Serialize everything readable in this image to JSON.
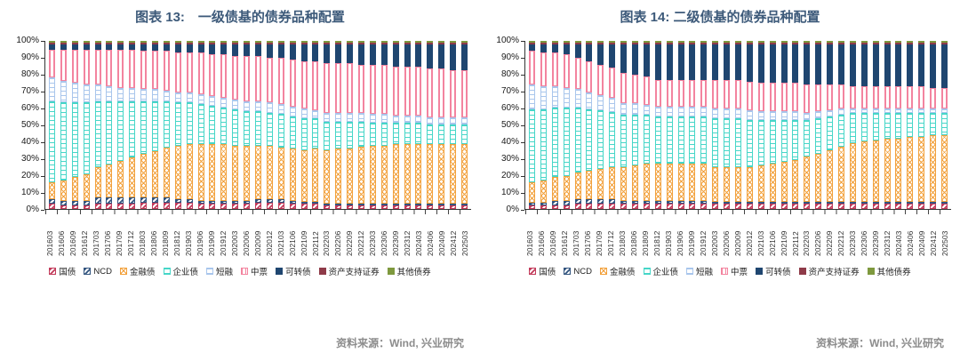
{
  "series_styles": [
    {
      "name": "国债",
      "color": "#C23A5A",
      "pattern": "diag"
    },
    {
      "name": "NCD",
      "color": "#33557F",
      "pattern": "diag"
    },
    {
      "name": "金融债",
      "color": "#F2A13C",
      "pattern": "lattice"
    },
    {
      "name": "企业债",
      "color": "#46D6C8",
      "pattern": "rungs"
    },
    {
      "name": "短融",
      "color": "#A9C6EC",
      "pattern": "rungs"
    },
    {
      "name": "中票",
      "color": "#F3849F",
      "pattern": "stripes-v"
    },
    {
      "name": "可转债",
      "color": "#1F4670",
      "pattern": "solid"
    },
    {
      "name": "资产支持证券",
      "color": "#8E3A48",
      "pattern": "solid"
    },
    {
      "name": "其他债券",
      "color": "#7E993E",
      "pattern": "solid"
    }
  ],
  "title_color": "#3D5A7A",
  "charts": [
    {
      "title": "图表 13:　一级债基的债券品种配置",
      "source": "资料来源：Wind, 兴业研究",
      "chart_data": {
        "type": "bar",
        "subtype": "stacked-100pct",
        "title": "图表 13: 一级债基的债券品种配置",
        "xlabel": "",
        "ylabel": "",
        "ylim": [
          0,
          100
        ],
        "yticks": [
          "0%",
          "10%",
          "20%",
          "30%",
          "40%",
          "50%",
          "60%",
          "70%",
          "80%",
          "90%",
          "100%"
        ],
        "grid": false,
        "legend_position": "bottom",
        "categories": [
          "201603",
          "201606",
          "201609",
          "201612",
          "201703",
          "201706",
          "201709",
          "201712",
          "201803",
          "201806",
          "201809",
          "201812",
          "201903",
          "201906",
          "201909",
          "201912",
          "202003",
          "202006",
          "202009",
          "202012",
          "202103",
          "202106",
          "202109",
          "202112",
          "202203",
          "202206",
          "202209",
          "202212",
          "202303",
          "202306",
          "202309",
          "202312",
          "202403",
          "202406",
          "202409",
          "202412",
          "202503"
        ],
        "series": [
          {
            "name": "国债",
            "values": [
              3,
              2,
              2,
              2,
              3,
              3,
              3,
              3,
              4,
              4,
              4,
              4,
              4,
              3,
              3,
              3,
              3,
              3,
              4,
              4,
              4,
              3,
              3,
              3,
              2,
              2,
              2,
              2,
              2,
              2,
              2,
              2,
              2,
              2,
              2,
              2,
              2
            ]
          },
          {
            "name": "NCD",
            "values": [
              3,
              3,
              3,
              3,
              4,
              4,
              4,
              4,
              3,
              3,
              3,
              2,
              2,
              2,
              2,
              2,
              2,
              2,
              2,
              2,
              2,
              2,
              1,
              1,
              1,
              1,
              1,
              1,
              1,
              1,
              1,
              1,
              1,
              1,
              1,
              1,
              1
            ]
          },
          {
            "name": "金融债",
            "values": [
              10,
              12,
              14,
              16,
              18,
              20,
              22,
              24,
              26,
              28,
              30,
              32,
              33,
              34,
              34,
              34,
              33,
              33,
              32,
              32,
              31,
              31,
              31,
              32,
              32,
              33,
              33,
              34,
              34,
              34,
              35,
              35,
              35,
              35,
              35,
              35,
              35
            ]
          },
          {
            "name": "企业债",
            "values": [
              49,
              47,
              45,
              43,
              40,
              38,
              36,
              34,
              32,
              30,
              28,
              26,
              25,
              24,
              23,
              22,
              22,
              21,
              21,
              20,
              20,
              19,
              19,
              18,
              17,
              16,
              16,
              15,
              14,
              14,
              13,
              13,
              13,
              12,
              12,
              12,
              12
            ]
          },
          {
            "name": "短融",
            "values": [
              14,
              13,
              12,
              11,
              10,
              9,
              8,
              8,
              7,
              7,
              6,
              6,
              6,
              6,
              6,
              6,
              6,
              6,
              6,
              6,
              6,
              6,
              6,
              5,
              5,
              5,
              5,
              5,
              5,
              5,
              4,
              4,
              4,
              4,
              4,
              4,
              4
            ]
          },
          {
            "name": "中票",
            "values": [
              17,
              19,
              20,
              21,
              21,
              22,
              23,
              23,
              23,
              23,
              24,
              24,
              24,
              25,
              25,
              26,
              26,
              27,
              27,
              27,
              28,
              28,
              28,
              29,
              30,
              30,
              30,
              29,
              29,
              29,
              29,
              29,
              29,
              29,
              29,
              28,
              28
            ]
          },
          {
            "name": "可转债",
            "values": [
              3,
              3,
              3,
              3,
              3,
              3,
              3,
              3,
              4,
              4,
              4,
              5,
              5,
              5,
              6,
              6,
              7,
              7,
              7,
              8,
              8,
              9,
              10,
              10,
              11,
              11,
              11,
              12,
              12,
              12,
              13,
              13,
              13,
              14,
              14,
              15,
              15
            ]
          },
          {
            "name": "资产支持证券",
            "values": [
              0.5,
              0.5,
              0.5,
              0.5,
              0.5,
              0.5,
              0.5,
              0.5,
              0.5,
              0.5,
              0.5,
              0.5,
              0.5,
              0.5,
              0.5,
              0.5,
              0.5,
              0.5,
              0.5,
              0.5,
              0.5,
              0.5,
              0.5,
              0.5,
              1,
              1,
              1,
              1,
              1,
              1,
              1,
              1,
              1,
              1,
              1,
              1,
              1
            ]
          },
          {
            "name": "其他债券",
            "values": [
              0.5,
              0.5,
              0.5,
              0.5,
              0.5,
              0.5,
              0.5,
              0.5,
              0.5,
              0.5,
              0.5,
              0.5,
              0.5,
              0.5,
              0.5,
              0.5,
              0.5,
              0.5,
              0.5,
              0.5,
              0.5,
              0.5,
              0.5,
              0.5,
              1,
              1,
              1,
              1,
              1,
              1,
              1,
              1,
              1,
              1,
              1,
              1,
              1
            ]
          }
        ]
      }
    },
    {
      "title": "图表 14: 二级债基的债券品种配置",
      "source": "资料来源：Wind, 兴业研究",
      "chart_data": {
        "type": "bar",
        "subtype": "stacked-100pct",
        "title": "图表 14: 二级债基的债券品种配置",
        "xlabel": "",
        "ylabel": "",
        "ylim": [
          0,
          100
        ],
        "yticks": [
          "0%",
          "10%",
          "20%",
          "30%",
          "40%",
          "50%",
          "60%",
          "70%",
          "80%",
          "90%",
          "100%"
        ],
        "grid": false,
        "legend_position": "bottom",
        "categories": [
          "201603",
          "201606",
          "201609",
          "201612",
          "201703",
          "201706",
          "201709",
          "201712",
          "201803",
          "201806",
          "201809",
          "201812",
          "201903",
          "201906",
          "201909",
          "201912",
          "202003",
          "202006",
          "202009",
          "202012",
          "202103",
          "202106",
          "202109",
          "202112",
          "202203",
          "202206",
          "202209",
          "202212",
          "202303",
          "202306",
          "202309",
          "202312",
          "202403",
          "202406",
          "202409",
          "202412",
          "202503"
        ],
        "series": [
          {
            "name": "国债",
            "values": [
              2,
              2,
              2,
              2,
              3,
              3,
              3,
              3,
              3,
              3,
              3,
              3,
              3,
              3,
              3,
              3,
              3,
              3,
              3,
              3,
              3,
              3,
              3,
              3,
              3,
              3,
              3,
              3,
              3,
              3,
              3,
              3,
              3,
              3,
              3,
              3,
              3
            ]
          },
          {
            "name": "NCD",
            "values": [
              2,
              2,
              3,
              3,
              3,
              3,
              3,
              3,
              2,
              2,
              2,
              2,
              2,
              2,
              2,
              2,
              1,
              1,
              1,
              1,
              1,
              1,
              1,
              1,
              1,
              1,
              1,
              1,
              1,
              1,
              1,
              1,
              1,
              1,
              1,
              1,
              1
            ]
          },
          {
            "name": "金融债",
            "values": [
              12,
              13,
              14,
              15,
              16,
              17,
              18,
              19,
              20,
              21,
              22,
              22,
              22,
              22,
              22,
              22,
              21,
              21,
              21,
              21,
              22,
              23,
              24,
              25,
              27,
              29,
              31,
              33,
              35,
              36,
              37,
              38,
              38,
              39,
              39,
              40,
              40
            ]
          },
          {
            "name": "企业债",
            "values": [
              44,
              43,
              42,
              41,
              39,
              37,
              35,
              33,
              31,
              30,
              29,
              28,
              28,
              28,
              28,
              28,
              29,
              29,
              29,
              28,
              27,
              26,
              25,
              24,
              22,
              21,
              20,
              19,
              18,
              17,
              16,
              15,
              15,
              14,
              14,
              13,
              13
            ]
          },
          {
            "name": "短融",
            "values": [
              15,
              14,
              13,
              12,
              11,
              10,
              9,
              8,
              7,
              7,
              6,
              6,
              6,
              6,
              6,
              6,
              6,
              6,
              6,
              6,
              5,
              5,
              5,
              5,
              4,
              4,
              4,
              4,
              3,
              3,
              3,
              3,
              3,
              3,
              3,
              3,
              3
            ]
          },
          {
            "name": "中票",
            "values": [
              20,
              20,
              20,
              20,
              19,
              19,
              18,
              18,
              18,
              17,
              17,
              16,
              16,
              16,
              16,
              16,
              17,
              17,
              17,
              17,
              17,
              17,
              17,
              17,
              17,
              16,
              15,
              14,
              13,
              13,
              13,
              13,
              13,
              13,
              13,
              12,
              12
            ]
          },
          {
            "name": "可转债",
            "values": [
              4,
              5,
              5,
              6,
              8,
              10,
              12,
              14,
              17,
              18,
              19,
              21,
              21,
              21,
              21,
              21,
              21,
              21,
              21,
              22,
              23,
              23,
              23,
              23,
              24,
              24,
              24,
              24,
              25,
              25,
              25,
              25,
              25,
              25,
              25,
              26,
              26
            ]
          },
          {
            "name": "资产支持证券",
            "values": [
              0.5,
              0.5,
              0.5,
              0.5,
              0.5,
              0.5,
              0.5,
              0.5,
              0.5,
              0.5,
              0.5,
              0.5,
              0.5,
              0.5,
              0.5,
              0.5,
              0.5,
              0.5,
              0.5,
              0.5,
              0.5,
              0.5,
              0.5,
              0.5,
              1,
              1,
              1,
              1,
              1,
              1,
              1,
              1,
              1,
              1,
              1,
              1,
              1
            ]
          },
          {
            "name": "其他债券",
            "values": [
              0.5,
              0.5,
              0.5,
              0.5,
              0.5,
              0.5,
              0.5,
              0.5,
              0.5,
              0.5,
              0.5,
              0.5,
              0.5,
              0.5,
              0.5,
              0.5,
              0.5,
              0.5,
              0.5,
              0.5,
              0.5,
              0.5,
              0.5,
              0.5,
              1,
              1,
              1,
              1,
              1,
              1,
              1,
              1,
              1,
              1,
              1,
              1,
              1
            ]
          }
        ]
      }
    }
  ]
}
